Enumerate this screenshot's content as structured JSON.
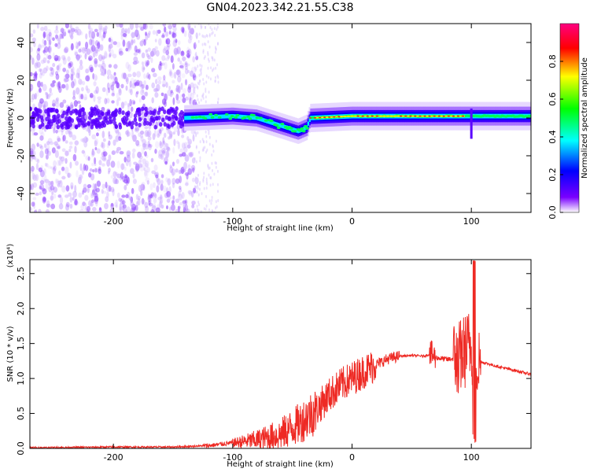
{
  "title": "GN04.2023.342.21.55.C38",
  "chart_data": [
    {
      "type": "heatmap",
      "title": "GN04.2023.342.21.55.C38",
      "xlabel": "Height of straight line (km)",
      "ylabel": "Frequency (Hz)",
      "xlim": [
        -270,
        150
      ],
      "ylim": [
        -50,
        50
      ],
      "x_ticks": [
        "-200",
        "-100",
        "0",
        "100"
      ],
      "y_ticks": [
        "40",
        "20",
        "0",
        "-20",
        "-40"
      ],
      "colorbar": {
        "label": "Normalized spectral amplitude",
        "range": [
          0,
          1
        ],
        "ticks": [
          "0.0",
          "0.2",
          "0.4",
          "0.6",
          "0.8"
        ],
        "colors": [
          "#ffffff",
          "#7a00ff",
          "#0000ff",
          "#00ffff",
          "#00ff00",
          "#ffff00",
          "#ff0000",
          "#ff0080"
        ]
      },
      "signal_center_freq": [
        {
          "x": -140,
          "y": 0
        },
        {
          "x": -100,
          "y": 1
        },
        {
          "x": -80,
          "y": 0
        },
        {
          "x": -60,
          "y": -4
        },
        {
          "x": -45,
          "y": -7
        },
        {
          "x": -38,
          "y": -5
        },
        {
          "x": -35,
          "y": 0
        },
        {
          "x": 0,
          "y": 1
        },
        {
          "x": 50,
          "y": 1
        },
        {
          "x": 100,
          "y": 1
        },
        {
          "x": 150,
          "y": 1
        }
      ],
      "grid": false
    },
    {
      "type": "line",
      "xlabel": "Height of straight line (km)",
      "ylabel": "SNR (10 * v/v)",
      "y_multiplier": "(x10⁴)",
      "xlim": [
        -270,
        150
      ],
      "ylim": [
        0,
        2.7
      ],
      "x_ticks": [
        "-200",
        "-100",
        "0",
        "100"
      ],
      "y_ticks": [
        "0.0",
        "0.5",
        "1.0",
        "1.5",
        "2.0",
        "2.5"
      ],
      "series": [
        {
          "color": "#ee2a24",
          "x": [
            -270,
            -200,
            -150,
            -120,
            -100,
            -80,
            -60,
            -45,
            -30,
            -20,
            -10,
            0,
            10,
            20,
            30,
            40,
            50,
            60,
            66,
            70,
            80,
            90,
            95,
            100,
            103,
            106,
            110,
            120,
            130,
            140,
            150
          ],
          "y": [
            0.01,
            0.02,
            0.02,
            0.04,
            0.08,
            0.12,
            0.2,
            0.35,
            0.55,
            0.75,
            0.9,
            1.0,
            1.1,
            1.2,
            1.28,
            1.32,
            1.33,
            1.32,
            1.35,
            1.3,
            1.27,
            1.3,
            1.4,
            1.5,
            1.2,
            1.25,
            1.23,
            1.18,
            1.14,
            1.1,
            1.06
          ]
        }
      ],
      "grid": false
    }
  ]
}
